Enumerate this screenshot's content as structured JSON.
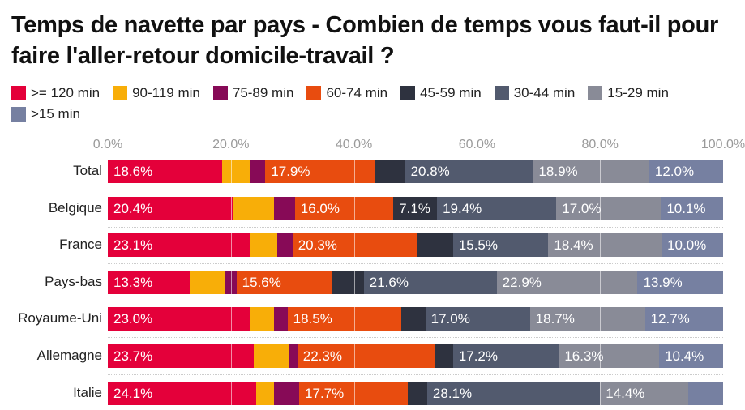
{
  "chart_data": {
    "type": "bar",
    "orientation": "horizontal",
    "stacked": true,
    "title": "Temps de navette par pays - Combien de temps vous faut-il pour faire l'aller-retour domicile-travail ?",
    "xlabel": "",
    "ylabel": "",
    "xlim": [
      0,
      100
    ],
    "x_ticks": [
      "0.0%",
      "20.0%",
      "40.0%",
      "60.0%",
      "80.0%",
      "100.0%"
    ],
    "grid": true,
    "legend_position": "top",
    "categories": [
      "Total",
      "Belgique",
      "France",
      "Pays-bas",
      "Royaume-Uni",
      "Allemagne",
      "Italie"
    ],
    "series": [
      {
        "name": ">= 120 min",
        "color": "#e4003a",
        "values": [
          18.6,
          20.4,
          23.1,
          13.3,
          23.0,
          23.7,
          24.1
        ]
      },
      {
        "name": "90-119 min",
        "color": "#f8ae08",
        "values": [
          4.5,
          6.6,
          4.4,
          5.7,
          4.0,
          5.8,
          2.9
        ]
      },
      {
        "name": "75-89 min",
        "color": "#870a57",
        "values": [
          2.5,
          3.4,
          2.5,
          1.9,
          2.2,
          1.3,
          4.1
        ]
      },
      {
        "name": "60-74 min",
        "color": "#e84c0f",
        "values": [
          17.9,
          16.0,
          20.3,
          15.6,
          18.5,
          22.3,
          17.7
        ]
      },
      {
        "name": "45-59 min",
        "color": "#2e323f",
        "values": [
          4.8,
          7.1,
          5.8,
          5.1,
          3.9,
          3.0,
          3.1
        ]
      },
      {
        "name": "30-44 min",
        "color": "#525a6e",
        "values": [
          20.8,
          19.4,
          15.5,
          21.6,
          17.0,
          17.2,
          28.1
        ]
      },
      {
        "name": "15-29 min",
        "color": "#898b97",
        "values": [
          18.9,
          17.0,
          18.4,
          22.9,
          18.7,
          16.3,
          14.4
        ]
      },
      {
        "name": ">15 min",
        "color": "#7680a1",
        "values": [
          12.0,
          10.1,
          10.0,
          13.9,
          12.7,
          10.4,
          5.6
        ]
      }
    ],
    "data_labels_shown_min": 7
  }
}
